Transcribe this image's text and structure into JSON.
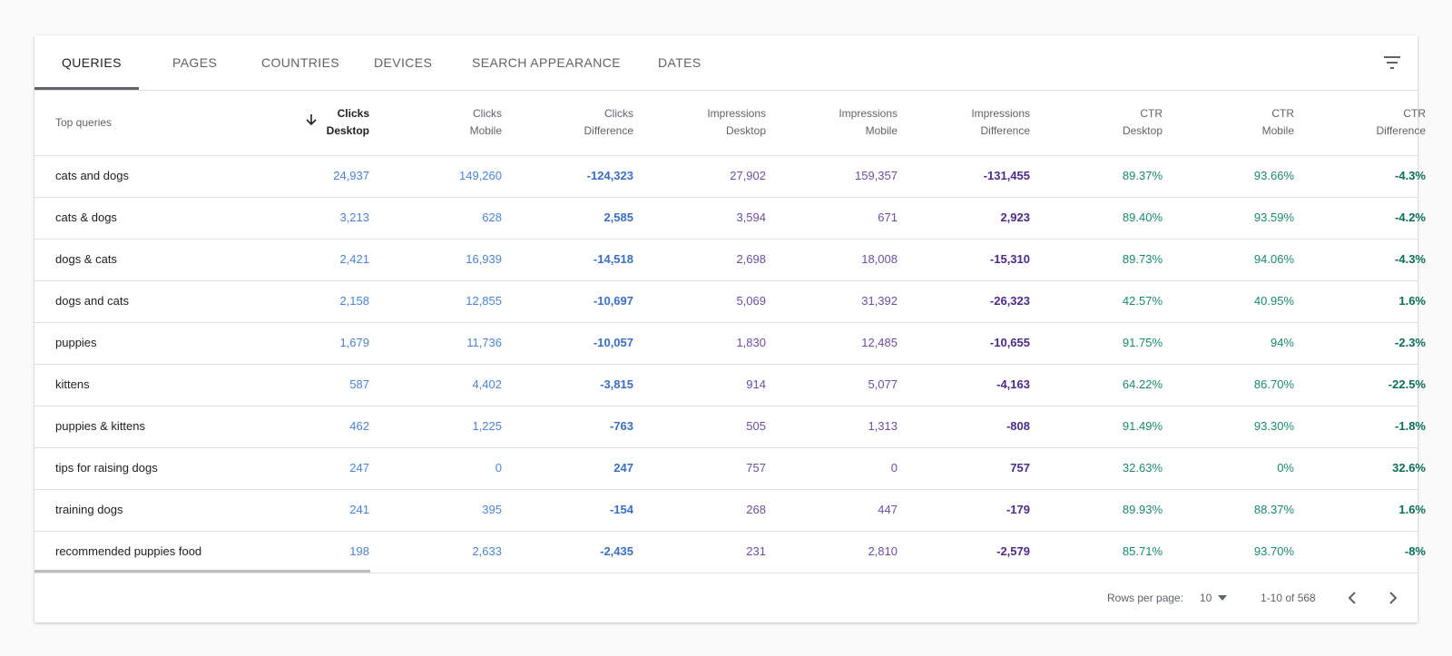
{
  "tabs": [
    "QUERIES",
    "PAGES",
    "COUNTRIES",
    "DEVICES",
    "SEARCH APPEARANCE",
    "DATES"
  ],
  "table": {
    "columns": [
      [
        "Top queries"
      ],
      [
        "Clicks",
        "Desktop"
      ],
      [
        "Clicks",
        "Mobile"
      ],
      [
        "Clicks",
        "Difference"
      ],
      [
        "Impressions",
        "Desktop"
      ],
      [
        "Impressions",
        "Mobile"
      ],
      [
        "Impressions",
        "Difference"
      ],
      [
        "CTR",
        "Desktop"
      ],
      [
        "CTR",
        "Mobile"
      ],
      [
        "CTR",
        "Difference"
      ]
    ],
    "rows": [
      [
        "cats and dogs",
        "24,937",
        "149,260",
        "-124,323",
        "27,902",
        "159,357",
        "-131,455",
        "89.37%",
        "93.66%",
        "-4.3%"
      ],
      [
        "cats & dogs",
        "3,213",
        "628",
        "2,585",
        "3,594",
        "671",
        "2,923",
        "89.40%",
        "93.59%",
        "-4.2%"
      ],
      [
        "dogs & cats",
        "2,421",
        "16,939",
        "-14,518",
        "2,698",
        "18,008",
        "-15,310",
        "89.73%",
        "94.06%",
        "-4.3%"
      ],
      [
        "dogs and cats",
        "2,158",
        "12,855",
        "-10,697",
        "5,069",
        "31,392",
        "-26,323",
        "42.57%",
        "40.95%",
        "1.6%"
      ],
      [
        "puppies",
        "1,679",
        "11,736",
        "-10,057",
        "1,830",
        "12,485",
        "-10,655",
        "91.75%",
        "94%",
        "-2.3%"
      ],
      [
        "kittens",
        "587",
        "4,402",
        "-3,815",
        "914",
        "5,077",
        "-4,163",
        "64.22%",
        "86.70%",
        "-22.5%"
      ],
      [
        "puppies & kittens",
        "462",
        "1,225",
        "-763",
        "505",
        "1,313",
        "-808",
        "91.49%",
        "93.30%",
        "-1.8%"
      ],
      [
        "tips for raising dogs",
        "247",
        "0",
        "247",
        "757",
        "0",
        "757",
        "32.63%",
        "0%",
        "32.6%"
      ],
      [
        "training dogs",
        "241",
        "395",
        "-154",
        "268",
        "447",
        "-179",
        "89.93%",
        "88.37%",
        "1.6%"
      ],
      [
        "recommended puppies food",
        "198",
        "2,633",
        "-2,435",
        "231",
        "2,810",
        "-2,579",
        "85.71%",
        "93.70%",
        "-8%"
      ]
    ]
  },
  "footer": {
    "rows_per_page_label": "Rows per page:",
    "rows_per_page": "10",
    "range": "1-10 of 568"
  }
}
